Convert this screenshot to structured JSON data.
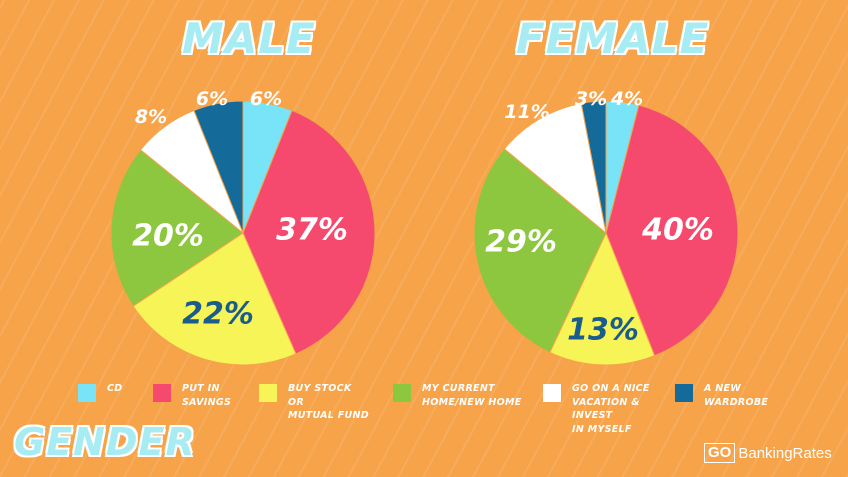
{
  "header": {
    "male_title": "MALE",
    "female_title": "FEMALE"
  },
  "footer": {
    "category_label": "GENDER",
    "brand_go": "GO",
    "brand_rest": "BankingRates"
  },
  "colors": {
    "background": "#f6a34a",
    "cd": "#79e3f7",
    "savings": "#f5496e",
    "stock": "#f7f458",
    "home": "#8dc63f",
    "vacation": "#ffffff",
    "wardrobe": "#146b9a",
    "dark_label": "#1a5d8c"
  },
  "chart_data": [
    {
      "type": "pie",
      "title": "MALE",
      "labels": [
        "CD",
        "PUT IN SAVINGS",
        "BUY STOCK OR MUTUAL FUND",
        "MY CURRENT HOME/NEW HOME",
        "GO ON A NICE VACATION & INVEST IN MYSELF",
        "A NEW WARDROBE"
      ],
      "values": [
        6,
        37,
        22,
        20,
        8,
        6
      ],
      "value_labels": [
        "6%",
        "37%",
        "22%",
        "20%",
        "8%",
        "6%"
      ]
    },
    {
      "type": "pie",
      "title": "FEMALE",
      "labels": [
        "CD",
        "PUT IN SAVINGS",
        "BUY STOCK OR MUTUAL FUND",
        "MY CURRENT HOME/NEW HOME",
        "GO ON A NICE VACATION & INVEST IN MYSELF",
        "A NEW WARDROBE"
      ],
      "values": [
        4,
        40,
        13,
        29,
        11,
        3
      ],
      "value_labels": [
        "4%",
        "40%",
        "13%",
        "29%",
        "11%",
        "3%"
      ]
    }
  ],
  "legend": [
    {
      "key": "cd",
      "label": "CD"
    },
    {
      "key": "savings",
      "label": "PUT IN\nSAVINGS"
    },
    {
      "key": "stock",
      "label": "BUY STOCK\nOR\nMUTUAL FUND"
    },
    {
      "key": "home",
      "label": "MY CURRENT\nHOME/NEW HOME"
    },
    {
      "key": "vacation",
      "label": "GO ON A NICE\nVACATION &\nINVEST\nIN MYSELF"
    },
    {
      "key": "wardrobe",
      "label": "A NEW\nWARDROBE"
    }
  ]
}
